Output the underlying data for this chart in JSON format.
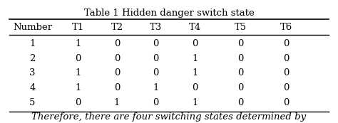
{
  "title": "Table 1 Hidden danger switch state",
  "columns": [
    "Number",
    "T1",
    "T2",
    "T3",
    "T4",
    "T5",
    "T6"
  ],
  "rows": [
    [
      "1",
      "1",
      "0",
      "0",
      "0",
      "0",
      "0"
    ],
    [
      "2",
      "0",
      "0",
      "0",
      "1",
      "0",
      "0"
    ],
    [
      "3",
      "1",
      "0",
      "0",
      "1",
      "0",
      "0"
    ],
    [
      "4",
      "1",
      "0",
      "1",
      "0",
      "0",
      "0"
    ],
    [
      "5",
      "0",
      "1",
      "0",
      "1",
      "0",
      "0"
    ]
  ],
  "footer_text": "Therefore, there are four switching states determined by",
  "bg_color": "#ffffff",
  "text_color": "#000000",
  "title_fontsize": 9.5,
  "header_fontsize": 9.5,
  "cell_fontsize": 9.5,
  "footer_fontsize": 9.5
}
